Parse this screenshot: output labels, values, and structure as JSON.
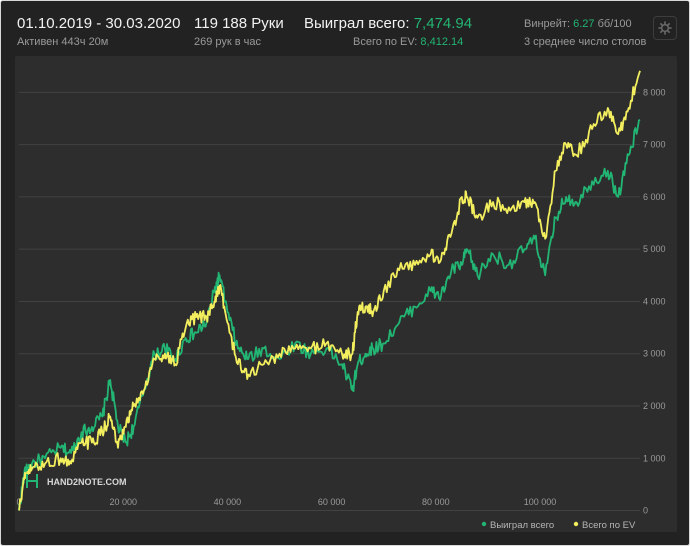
{
  "header": {
    "date_range": "01.10.2019 - 30.03.2020",
    "active_time": "Активен 443ч 20м",
    "hands": "119 188 Руки",
    "hands_per_hour": "269 рук в час",
    "won_label": "Выиграл всего:",
    "won_value": "7,474.94",
    "ev_label": "Всего по EV:",
    "ev_value": "8,412.14",
    "winrate_label": "Винрейт:",
    "winrate_value": "6.27",
    "winrate_unit": "бб/100",
    "avg_tables": "3 среднее число столов"
  },
  "watermark": "HAND2NOTE.COM",
  "colors": {
    "won": "#22b573",
    "ev": "#f2ee5e",
    "background": "#222222",
    "plot_background": "#2d2d2d"
  },
  "settings_icon": "gear-icon",
  "chart_data": {
    "type": "line",
    "title": "",
    "xlabel": "",
    "ylabel": "",
    "xlim": [
      0,
      119188
    ],
    "ylim": [
      -200,
      8600
    ],
    "x_ticks": [
      0,
      20000,
      40000,
      60000,
      80000,
      100000
    ],
    "x_tick_labels": [
      "0",
      "20 000",
      "40 000",
      "60 000",
      "80 000",
      "100 000"
    ],
    "y_ticks": [
      0,
      1000,
      2000,
      3000,
      4000,
      5000,
      6000,
      7000,
      8000
    ],
    "y_tick_labels": [
      "0",
      "1 000",
      "2 000",
      "3 000",
      "4 000",
      "5 000",
      "6 000",
      "7 000",
      "8 000"
    ],
    "grid": "horizontal",
    "legend_position": "bottom-right",
    "series": [
      {
        "name": "Выиграл всего",
        "color": "#22b573",
        "x": [
          0,
          1000,
          2500,
          5000,
          8000,
          10000,
          12000,
          14000,
          16000,
          17500,
          19000,
          20500,
          22000,
          24000,
          26000,
          28000,
          30000,
          32000,
          34000,
          36000,
          37500,
          38500,
          40000,
          42000,
          44000,
          47000,
          50000,
          53000,
          56000,
          59000,
          62000,
          64000,
          65000,
          66500,
          68000,
          70000,
          73000,
          76000,
          79000,
          81000,
          83000,
          85000,
          86000,
          88000,
          91000,
          94000,
          97000,
          99000,
          101000,
          103000,
          105000,
          107000,
          110000,
          113000,
          115000,
          117000,
          119188
        ],
        "values": [
          0,
          700,
          900,
          1000,
          1200,
          1100,
          1500,
          1600,
          1800,
          2500,
          1600,
          1300,
          1600,
          2300,
          3000,
          3100,
          2900,
          3300,
          3400,
          3600,
          4200,
          4500,
          3800,
          3100,
          2900,
          3100,
          2900,
          3200,
          3000,
          3100,
          2800,
          2300,
          2800,
          3000,
          3100,
          3200,
          3600,
          3900,
          4200,
          4100,
          4600,
          4700,
          5000,
          4500,
          4900,
          4700,
          5000,
          5200,
          4500,
          5600,
          6000,
          5900,
          6300,
          6500,
          6000,
          6800,
          7475
        ]
      },
      {
        "name": "Всего по EV",
        "color": "#f2ee5e",
        "x": [
          0,
          1000,
          2500,
          5000,
          8000,
          10000,
          12000,
          14000,
          16000,
          17500,
          19000,
          20500,
          22000,
          24000,
          26000,
          28000,
          30000,
          32000,
          34000,
          36000,
          37500,
          38500,
          40000,
          42000,
          44000,
          47000,
          50000,
          53000,
          56000,
          59000,
          62000,
          64000,
          65000,
          66500,
          68000,
          70000,
          73000,
          76000,
          79000,
          81000,
          83000,
          85000,
          86000,
          88000,
          91000,
          94000,
          97000,
          99000,
          101000,
          103000,
          105000,
          107000,
          110000,
          113000,
          115000,
          117000,
          119188
        ],
        "values": [
          0,
          600,
          800,
          900,
          1000,
          900,
          1300,
          1300,
          1500,
          1800,
          1200,
          1600,
          2000,
          2300,
          2900,
          3000,
          2800,
          3500,
          3700,
          3700,
          4000,
          4300,
          3600,
          2800,
          2600,
          2800,
          3000,
          3100,
          3100,
          3200,
          3000,
          3000,
          3800,
          3900,
          3800,
          4200,
          4600,
          4700,
          4900,
          4800,
          5300,
          6000,
          6000,
          5600,
          5900,
          5800,
          5900,
          5900,
          5200,
          6500,
          7000,
          6800,
          7300,
          7700,
          7200,
          7700,
          8412
        ]
      }
    ]
  }
}
